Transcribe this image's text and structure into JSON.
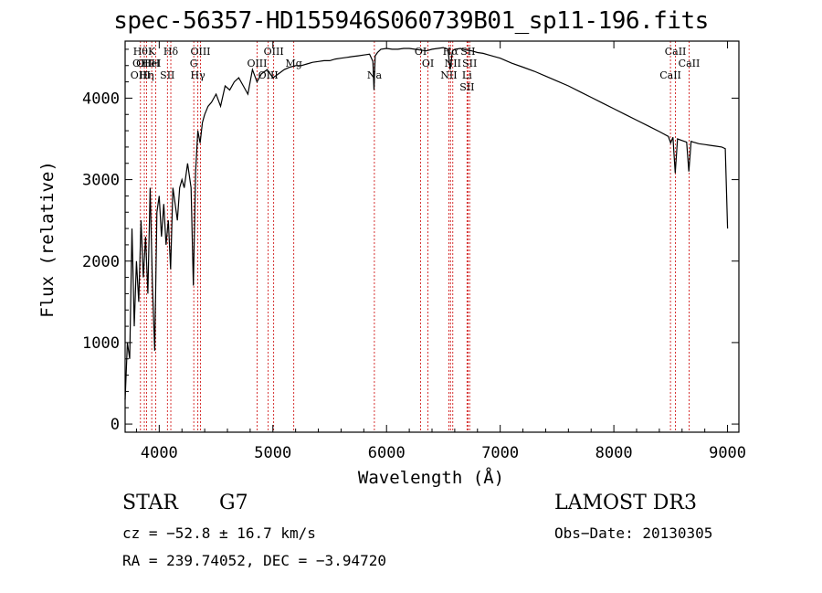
{
  "chart_data": {
    "type": "line",
    "title": "spec-56357-HD155946S060739B01_sp11-196.fits",
    "xlabel": "Wavelength (Å)",
    "ylabel": "Flux (relative)",
    "xlim": [
      3700,
      9100
    ],
    "ylim": [
      -100,
      4700
    ],
    "xticks": [
      4000,
      5000,
      6000,
      7000,
      8000,
      9000
    ],
    "yticks": [
      0,
      1000,
      2000,
      3000,
      4000
    ],
    "series": [
      {
        "name": "spectrum",
        "x": [
          3700,
          3720,
          3740,
          3760,
          3780,
          3800,
          3820,
          3840,
          3860,
          3880,
          3900,
          3920,
          3940,
          3960,
          3980,
          4000,
          4020,
          4040,
          4060,
          4080,
          4100,
          4120,
          4140,
          4160,
          4180,
          4200,
          4220,
          4250,
          4280,
          4300,
          4320,
          4340,
          4360,
          4380,
          4400,
          4430,
          4460,
          4500,
          4540,
          4580,
          4620,
          4660,
          4700,
          4740,
          4780,
          4820,
          4860,
          4900,
          4950,
          5000,
          5050,
          5100,
          5150,
          5200,
          5250,
          5300,
          5350,
          5400,
          5450,
          5500,
          5550,
          5600,
          5650,
          5700,
          5750,
          5800,
          5850,
          5880,
          5890,
          5900,
          5920,
          5950,
          6000,
          6050,
          6100,
          6150,
          6200,
          6250,
          6300,
          6350,
          6400,
          6450,
          6500,
          6540,
          6560,
          6580,
          6600,
          6650,
          6700,
          6750,
          6800,
          6850,
          6900,
          6950,
          7000,
          7100,
          7200,
          7300,
          7400,
          7500,
          7600,
          7700,
          7800,
          7900,
          8000,
          8100,
          8200,
          8300,
          8400,
          8480,
          8500,
          8520,
          8540,
          8560,
          8600,
          8640,
          8660,
          8680,
          8700,
          8750,
          8800,
          8850,
          8900,
          8950,
          8980,
          9000
        ],
        "values": [
          300,
          1000,
          800,
          2400,
          1200,
          2000,
          1500,
          2500,
          1800,
          2300,
          1600,
          2900,
          1700,
          900,
          2600,
          2800,
          2300,
          2700,
          2200,
          2500,
          1900,
          2900,
          2700,
          2500,
          2900,
          3000,
          2900,
          3200,
          2900,
          1700,
          3100,
          3600,
          3450,
          3700,
          3800,
          3900,
          3950,
          4050,
          3900,
          4150,
          4100,
          4200,
          4250,
          4150,
          4050,
          4350,
          4200,
          4300,
          4350,
          4250,
          4300,
          4350,
          4380,
          4400,
          4400,
          4420,
          4440,
          4450,
          4460,
          4460,
          4480,
          4490,
          4500,
          4510,
          4520,
          4530,
          4540,
          4450,
          4100,
          4520,
          4560,
          4600,
          4610,
          4600,
          4600,
          4610,
          4610,
          4600,
          4590,
          4580,
          4600,
          4610,
          4620,
          4600,
          4350,
          4580,
          4600,
          4610,
          4590,
          4580,
          4560,
          4550,
          4530,
          4510,
          4490,
          4430,
          4380,
          4330,
          4270,
          4210,
          4150,
          4080,
          4010,
          3940,
          3870,
          3800,
          3730,
          3660,
          3590,
          3530,
          3450,
          3520,
          3080,
          3500,
          3480,
          3460,
          3100,
          3470,
          3460,
          3440,
          3430,
          3420,
          3410,
          3400,
          3380,
          2400
        ]
      }
    ],
    "line_annotations": [
      {
        "wavelength": 3835,
        "labels": [
          "Hθ",
          "OII",
          "OIII"
        ]
      },
      {
        "wavelength": 3869,
        "labels": [
          "OII"
        ]
      },
      {
        "wavelength": 3889,
        "labels": [
          "Hη"
        ]
      },
      {
        "wavelength": 3934,
        "labels": [
          "K",
          "HeI"
        ]
      },
      {
        "wavelength": 3969,
        "labels": [
          "H"
        ]
      },
      {
        "wavelength": 4072,
        "labels": [
          "SII"
        ]
      },
      {
        "wavelength": 4102,
        "labels": [
          "Hδ"
        ]
      },
      {
        "wavelength": 4304,
        "labels": [
          "G"
        ]
      },
      {
        "wavelength": 4340,
        "labels": [
          "Hγ"
        ]
      },
      {
        "wavelength": 4363,
        "labels": [
          "OIII"
        ]
      },
      {
        "wavelength": 4861,
        "labels": [
          "OIII"
        ]
      },
      {
        "wavelength": 4959,
        "labels": [
          "OIII"
        ]
      },
      {
        "wavelength": 5007,
        "labels": [
          "OIII"
        ]
      },
      {
        "wavelength": 5184,
        "labels": [
          "Mg"
        ]
      },
      {
        "wavelength": 5893,
        "labels": [
          "Na"
        ]
      },
      {
        "wavelength": 6300,
        "labels": [
          "OI"
        ]
      },
      {
        "wavelength": 6364,
        "labels": [
          "OI"
        ]
      },
      {
        "wavelength": 6548,
        "labels": [
          "NII"
        ]
      },
      {
        "wavelength": 6563,
        "labels": [
          "Hα"
        ]
      },
      {
        "wavelength": 6583,
        "labels": [
          "NII"
        ]
      },
      {
        "wavelength": 6708,
        "labels": [
          "Li",
          "SII"
        ]
      },
      {
        "wavelength": 6716,
        "labels": [
          "SII"
        ]
      },
      {
        "wavelength": 6731,
        "labels": [
          "SII"
        ]
      },
      {
        "wavelength": 8498,
        "labels": [
          "CaII"
        ]
      },
      {
        "wavelength": 8542,
        "labels": [
          "CaII"
        ]
      },
      {
        "wavelength": 8662,
        "labels": [
          "CaII"
        ]
      }
    ],
    "annotation_color": "#cc0000",
    "line_color": "#000000"
  },
  "info": {
    "class": "STAR",
    "subclass": "G7",
    "survey": "LAMOST DR3",
    "cz": "cz = −52.8 ± 16.7 km/s",
    "obs_date": "Obs−Date: 20130305",
    "coords": "RA = 239.74052, DEC =  −3.94720"
  }
}
